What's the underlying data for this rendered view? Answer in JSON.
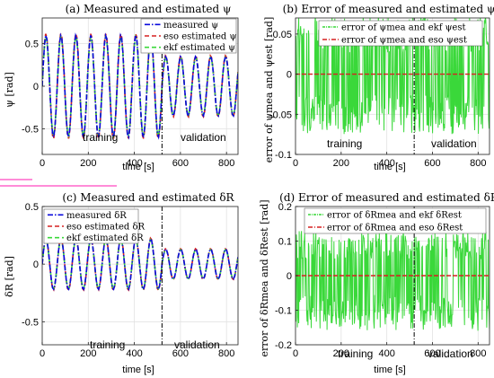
{
  "figure": {
    "colors": {
      "measured": "#0a0adc",
      "eso": "#d62020",
      "ekf": "#3ad83a",
      "blue_solid": "#1f1fd0",
      "black": "#000000",
      "pink_artifact": "#ff66cc"
    }
  },
  "chart_data": [
    {
      "id": "a",
      "type": "line",
      "title": "(a) Measured and estimated ψ",
      "xlabel": "time [s]",
      "ylabel": "ψ [rad]",
      "xlim": [
        0,
        850
      ],
      "ylim": [
        -0.8,
        0.8
      ],
      "xticks": [
        0,
        200,
        400,
        600,
        800
      ],
      "yticks": [
        -0.5,
        0,
        0.5
      ],
      "grid": true,
      "legend_position": "top-right",
      "split_time": 520,
      "annotations": [
        "training",
        "validation"
      ],
      "series": [
        {
          "name": "measured ψ",
          "style": "dash-dot",
          "color_key": "measured"
        },
        {
          "name": "eso estimated ψ",
          "style": "dashed",
          "color_key": "eso"
        },
        {
          "name": "ekf estimated ψ",
          "style": "dashed",
          "color_key": "ekf"
        }
      ],
      "signal": {
        "segments": [
          {
            "from": 0,
            "to": 520,
            "amplitude": 0.6,
            "period": 65
          },
          {
            "from": 520,
            "to": 850,
            "amplitude": 0.35,
            "period": 65
          }
        ],
        "x_step": 5
      }
    },
    {
      "id": "b",
      "type": "line",
      "title": "(b) Error of measured and estimated ψ",
      "xlabel": "time [s]",
      "ylabel": "error of ψmea and ψest [rad]",
      "xlim": [
        0,
        850
      ],
      "ylim": [
        -0.1,
        0.07
      ],
      "xticks": [
        0,
        200,
        400,
        600,
        800
      ],
      "yticks": [
        -0.1,
        -0.05,
        0,
        0.05
      ],
      "grid": true,
      "legend_position": "top-right",
      "split_time": 520,
      "annotations": [
        "training",
        "validation"
      ],
      "series": [
        {
          "name": "error of ψmea and ekf ψest",
          "style": "noise",
          "color_key": "ekf",
          "spread": [
            -0.075,
            0.075
          ]
        },
        {
          "name": "error of ψmea and eso ψest",
          "style": "flat",
          "color_key": "eso",
          "value": 0
        }
      ]
    },
    {
      "id": "c",
      "type": "line",
      "title": "(c) Measured and estimated δR",
      "xlabel": "time [s]",
      "ylabel": "δR [rad]",
      "xlim": [
        0,
        850
      ],
      "ylim": [
        -0.7,
        0.5
      ],
      "xticks": [
        0,
        200,
        400,
        600,
        800
      ],
      "yticks": [
        -0.5,
        0,
        0.5
      ],
      "grid": true,
      "legend_position": "top-left",
      "split_time": 520,
      "annotations": [
        "training",
        "validation"
      ],
      "series": [
        {
          "name": "measured δR",
          "style": "dash-dot",
          "color_key": "measured"
        },
        {
          "name": "eso estimated δR",
          "style": "dashed",
          "color_key": "eso"
        },
        {
          "name": "ekf estimated δR",
          "style": "dashed",
          "color_key": "ekf"
        }
      ],
      "signal": {
        "segments": [
          {
            "from": 0,
            "to": 520,
            "amplitude": 0.22,
            "period": 65
          },
          {
            "from": 520,
            "to": 850,
            "amplitude": 0.13,
            "period": 65
          }
        ],
        "x_step": 5
      }
    },
    {
      "id": "d",
      "type": "line",
      "title": "(d) Error of measured and estimated δR",
      "xlabel": "time [s]",
      "ylabel": "error of δRmea and δRest [rad]",
      "xlim": [
        0,
        850
      ],
      "ylim": [
        -0.2,
        0.2
      ],
      "xticks": [
        0,
        200,
        400,
        600,
        800
      ],
      "yticks": [
        -0.2,
        -0.1,
        0,
        0.1,
        0.2
      ],
      "grid": true,
      "legend_position": "top-right",
      "split_time": 520,
      "annotations": [
        "training",
        "validation"
      ],
      "series": [
        {
          "name": "error of δRmea and ekf δRest",
          "style": "noise",
          "color_key": "ekf",
          "spread": [
            -0.16,
            0.13
          ]
        },
        {
          "name": "error of δRmea and eso δRest",
          "style": "flat",
          "color_key": "eso",
          "value": 0
        }
      ]
    }
  ]
}
